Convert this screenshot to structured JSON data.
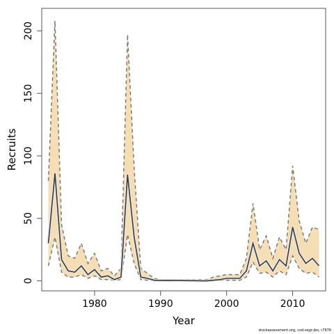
{
  "chart_data": {
    "type": "line",
    "title": "",
    "xlabel": "Year",
    "ylabel": "Recruits",
    "xlim": [
      1972,
      2015
    ],
    "ylim": [
      -8,
      218
    ],
    "x_ticks": [
      1980,
      1990,
      2000,
      2010
    ],
    "y_ticks": [
      0,
      50,
      100,
      150,
      200
    ],
    "grid": false,
    "legend": "none",
    "source_note": "stockassessment.org, cod-segr-jbo, r7676",
    "colors": {
      "band": "#f5deb3",
      "line": "#3a3a3a",
      "bounds": "#7a7a7a"
    },
    "x": [
      1973,
      1974,
      1975,
      1976,
      1977,
      1978,
      1979,
      1980,
      1981,
      1982,
      1983,
      1984,
      1985,
      1986,
      1987,
      1988,
      1989,
      1990,
      1991,
      1992,
      1993,
      1994,
      1995,
      1996,
      1997,
      1998,
      1999,
      2000,
      2001,
      2002,
      2003,
      2004,
      2005,
      2006,
      2007,
      2008,
      2009,
      2010,
      2011,
      2012,
      2013,
      2014
    ],
    "series": [
      {
        "role": "estimate",
        "values": [
          30,
          86,
          17,
          8,
          7,
          12,
          5,
          9,
          3,
          4,
          1,
          3,
          85,
          35,
          3,
          2,
          0.5,
          0.3,
          0.4,
          0.3,
          0.3,
          0.2,
          0.2,
          0,
          0,
          0.5,
          1,
          2,
          2,
          2,
          8,
          30,
          12,
          16,
          8,
          17,
          12,
          43,
          22,
          14,
          18,
          12
        ]
      },
      {
        "role": "upper",
        "values": [
          80,
          208,
          45,
          20,
          18,
          30,
          14,
          22,
          8,
          10,
          4,
          10,
          197,
          90,
          10,
          6,
          2,
          1,
          1,
          1,
          1,
          1,
          1,
          1,
          1,
          3,
          4,
          5,
          5,
          5,
          18,
          62,
          25,
          36,
          18,
          35,
          25,
          92,
          48,
          30,
          43,
          41
        ]
      },
      {
        "role": "lower",
        "values": [
          12,
          35,
          7,
          3,
          3,
          5,
          2,
          4,
          1,
          1,
          0.5,
          1,
          37,
          14,
          1,
          0.5,
          0.1,
          0.1,
          0.1,
          0.1,
          0.1,
          0.1,
          0.1,
          0,
          0,
          0.1,
          0.3,
          0.5,
          0.5,
          0.5,
          3,
          15,
          6,
          7,
          3,
          8,
          5,
          20,
          10,
          6,
          7,
          3
        ]
      }
    ]
  }
}
